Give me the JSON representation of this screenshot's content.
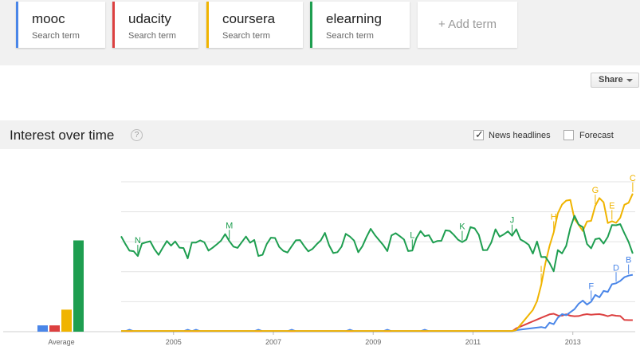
{
  "search_terms": [
    {
      "term": "mooc",
      "sub": "Search term",
      "color": "#4a86e8"
    },
    {
      "term": "udacity",
      "sub": "Search term",
      "color": "#dc4040"
    },
    {
      "term": "coursera",
      "sub": "Search term",
      "color": "#f0b400"
    },
    {
      "term": "elearning",
      "sub": "Search term",
      "color": "#1e9e50"
    }
  ],
  "add_term_label": "+ Add term",
  "share_label": "Share",
  "section": {
    "title": "Interest over time",
    "help": "?",
    "news_label": "News headlines",
    "news_checked": true,
    "forecast_label": "Forecast",
    "forecast_checked": false
  },
  "chart_data": {
    "type": "line",
    "xlabels": [
      "2005",
      "2007",
      "2009",
      "2011",
      "2013"
    ],
    "average_label": "Average",
    "average_values": [
      {
        "series": "mooc",
        "value": 2
      },
      {
        "series": "udacity",
        "value": 2
      },
      {
        "series": "coursera",
        "value": 7
      },
      {
        "series": "elearning",
        "value": 29
      }
    ],
    "ylim": [
      0,
      100
    ],
    "series": [
      {
        "name": "elearning",
        "color": "#1e9e50"
      },
      {
        "name": "coursera",
        "color": "#f0b400"
      },
      {
        "name": "mooc",
        "color": "#4a86e8"
      },
      {
        "name": "udacity",
        "color": "#dc4040"
      }
    ],
    "annotations": [
      {
        "letter": "N",
        "series": "elearning",
        "year": 2004.3
      },
      {
        "letter": "M",
        "series": "elearning",
        "year": 2006.2
      },
      {
        "letter": "L",
        "series": "elearning",
        "year": 2009.8
      },
      {
        "letter": "K",
        "series": "elearning",
        "year": 2010.8
      },
      {
        "letter": "J",
        "series": "elearning",
        "year": 2011.8
      },
      {
        "letter": "I",
        "series": "coursera",
        "year": 2012.4
      },
      {
        "letter": "H",
        "series": "coursera",
        "year": 2012.7
      },
      {
        "letter": "G",
        "series": "coursera",
        "year": 2013.5
      },
      {
        "letter": "E",
        "series": "coursera",
        "year": 2013.8
      },
      {
        "letter": "C",
        "series": "coursera",
        "year": 2014.25
      },
      {
        "letter": "F",
        "series": "mooc",
        "year": 2013.45
      },
      {
        "letter": "D",
        "series": "mooc",
        "year": 2013.9
      },
      {
        "letter": "B",
        "series": "mooc",
        "year": 2014.15
      }
    ]
  }
}
